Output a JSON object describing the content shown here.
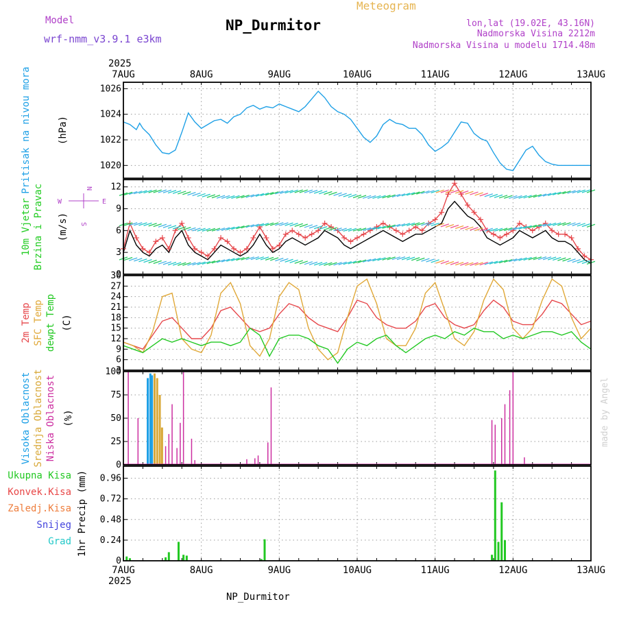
{
  "header": {
    "model_label": "Model",
    "model_name": "wrf-nmm_v3.9.1 e3km",
    "title": "NP_Durmitor",
    "subtitle": "Meteogram",
    "lonlat": "lon,lat (19.02E, 43.16N)",
    "elevation": "Nadmorska Visina 2212m",
    "model_elevation": "Nadmorska Visina u modelu 1714.48m",
    "footer_station": "NP_Durmitor",
    "credit": "made by Angel"
  },
  "colors": {
    "pressure": "#1ea0e6",
    "wind_label": "#22cc22",
    "temp2m": "#e6464a",
    "sfc": "#e0a838",
    "dewpt": "#22c822",
    "high_cloud": "#1ea0e6",
    "mid_cloud": "#d8a838",
    "low_cloud": "#cc2ea0",
    "precip_total": "#22c822",
    "precip_conv": "#e84646",
    "precip_frozen": "#ee7d3c",
    "precip_snow": "#4444dd",
    "precip_graup": "#22c8c8",
    "vane_label": "#b040c8",
    "year": "#000000"
  },
  "chart_data": {
    "type": "meteogram",
    "year": "2025",
    "x_ticks": [
      "7AUG",
      "8AUG",
      "9AUG",
      "10AUG",
      "11AUG",
      "12AUG",
      "13AUG"
    ],
    "x_range_hours": [
      0,
      144
    ],
    "panels": [
      {
        "id": "pressure",
        "type": "line",
        "labels": [
          "Pritisak na nivou mora"
        ],
        "unit": "(hPa)",
        "ylim": [
          1019,
          1026.5
        ],
        "y_ticks": [
          1020,
          1022,
          1024,
          1026
        ],
        "series": [
          {
            "name": "Pritisak na nivou mora",
            "x": [
              0,
              2,
              4,
              5,
              6,
              8,
              10,
              12,
              14,
              16,
              18,
              20,
              22,
              24,
              26,
              28,
              30,
              32,
              34,
              36,
              38,
              40,
              42,
              44,
              46,
              48,
              50,
              52,
              54,
              56,
              58,
              60,
              62,
              64,
              66,
              68,
              70,
              72,
              74,
              76,
              78,
              80,
              82,
              84,
              86,
              88,
              90,
              92,
              94,
              96,
              98,
              100,
              102,
              104,
              106,
              108,
              110,
              112,
              114,
              116,
              118,
              120,
              122,
              124,
              126,
              128,
              130,
              132,
              134,
              136,
              138,
              140,
              142,
              144
            ],
            "values": [
              1023.4,
              1023.2,
              1022.8,
              1023.3,
              1022.9,
              1022.4,
              1021.6,
              1021.0,
              1020.9,
              1021.2,
              1022.6,
              1024.1,
              1023.4,
              1022.9,
              1023.2,
              1023.5,
              1023.6,
              1023.3,
              1023.8,
              1024.0,
              1024.5,
              1024.7,
              1024.4,
              1024.6,
              1024.5,
              1024.8,
              1024.6,
              1024.4,
              1024.2,
              1024.6,
              1025.2,
              1025.8,
              1025.3,
              1024.6,
              1024.2,
              1024.0,
              1023.6,
              1022.9,
              1022.2,
              1021.8,
              1022.3,
              1023.2,
              1023.6,
              1023.3,
              1023.2,
              1022.9,
              1022.9,
              1022.4,
              1021.6,
              1021.1,
              1021.4,
              1021.8,
              1022.6,
              1023.4,
              1023.3,
              1022.5,
              1022.1,
              1021.9,
              1021.0,
              1020.2,
              1019.7,
              1019.6,
              1020.4,
              1021.2,
              1021.5,
              1020.8,
              1020.3,
              1020.1,
              1020.0,
              1020.0,
              1020.0,
              1020.0,
              1020.0,
              1020.0
            ]
          }
        ]
      },
      {
        "id": "wind",
        "type": "line",
        "labels": [
          "10m Vjetar",
          "Brzina i Pravac"
        ],
        "unit": "(m/s)",
        "ylim": [
          0,
          13
        ],
        "y_ticks": [
          0,
          3,
          6,
          9,
          12
        ],
        "vane_labels": [
          "W",
          "N",
          "S",
          "E"
        ],
        "series": [
          {
            "name": "Brzina",
            "x": [
              0,
              2,
              4,
              6,
              8,
              10,
              12,
              14,
              16,
              18,
              20,
              22,
              24,
              26,
              28,
              30,
              32,
              34,
              36,
              38,
              40,
              42,
              44,
              46,
              48,
              50,
              52,
              54,
              56,
              58,
              60,
              62,
              64,
              66,
              68,
              70,
              72,
              74,
              76,
              78,
              80,
              82,
              84,
              86,
              88,
              90,
              92,
              94,
              96,
              98,
              100,
              102,
              104,
              106,
              108,
              110,
              112,
              114,
              116,
              118,
              120,
              122,
              124,
              126,
              128,
              130,
              132,
              134,
              136,
              138,
              140,
              142,
              144
            ],
            "values": [
              3.0,
              6.0,
              4.0,
              3.0,
              2.5,
              3.5,
              4.0,
              3.0,
              5.0,
              6.0,
              4.0,
              3.0,
              2.5,
              2.0,
              3.0,
              4.0,
              3.5,
              3.0,
              2.5,
              3.0,
              4.0,
              5.5,
              4.0,
              3.0,
              3.5,
              4.5,
              5.0,
              4.5,
              4.0,
              4.5,
              5.0,
              6.0,
              5.5,
              5.0,
              4.0,
              3.5,
              4.0,
              4.5,
              5.0,
              5.5,
              6.0,
              5.5,
              5.0,
              4.5,
              5.0,
              5.5,
              5.5,
              6.0,
              6.5,
              7.0,
              9.0,
              10.0,
              9.0,
              8.0,
              7.5,
              6.5,
              5.0,
              4.5,
              4.0,
              4.5,
              5.0,
              6.0,
              5.5,
              5.0,
              5.5,
              6.0,
              5.0,
              4.5,
              4.5,
              4.0,
              3.0,
              2.0,
              1.5
            ]
          },
          {
            "name": "Udari",
            "x": [
              0,
              2,
              4,
              6,
              8,
              10,
              12,
              14,
              16,
              18,
              20,
              22,
              24,
              26,
              28,
              30,
              32,
              34,
              36,
              38,
              40,
              42,
              44,
              46,
              48,
              50,
              52,
              54,
              56,
              58,
              60,
              62,
              64,
              66,
              68,
              70,
              72,
              74,
              76,
              78,
              80,
              82,
              84,
              86,
              88,
              90,
              92,
              94,
              96,
              98,
              100,
              102,
              104,
              106,
              108,
              110,
              112,
              114,
              116,
              118,
              120,
              122,
              124,
              126,
              128,
              130,
              132,
              134,
              136,
              138,
              140,
              142,
              144
            ],
            "values": [
              3.5,
              7.0,
              5.0,
              3.5,
              3.0,
              4.5,
              5.0,
              3.5,
              6.0,
              7.0,
              5.0,
              3.5,
              3.0,
              2.5,
              3.5,
              5.0,
              4.5,
              3.5,
              3.0,
              3.5,
              5.0,
              6.5,
              5.0,
              3.5,
              4.0,
              5.5,
              6.0,
              5.5,
              5.0,
              5.5,
              6.0,
              7.0,
              6.5,
              6.0,
              5.0,
              4.5,
              5.0,
              5.5,
              6.0,
              6.5,
              7.0,
              6.5,
              6.0,
              5.5,
              6.0,
              6.5,
              6.0,
              7.0,
              7.5,
              8.5,
              11.0,
              12.5,
              11.0,
              9.5,
              8.5,
              7.5,
              6.0,
              5.5,
              5.0,
              5.5,
              6.0,
              7.0,
              6.5,
              6.0,
              6.5,
              7.0,
              6.0,
              5.5,
              5.5,
              5.0,
              3.5,
              2.5,
              2.0
            ]
          }
        ]
      },
      {
        "id": "temperature",
        "type": "line",
        "labels": [
          "2m Temp",
          "SFC Temp",
          "dewpt Temp"
        ],
        "unit": "(C)",
        "ylim": [
          3,
          30
        ],
        "y_ticks": [
          3,
          6,
          9,
          12,
          15,
          18,
          21,
          24,
          27,
          30
        ],
        "series": [
          {
            "name": "2m Temp",
            "x": [
              0,
              3,
              6,
              9,
              12,
              15,
              18,
              21,
              24,
              27,
              30,
              33,
              36,
              39,
              42,
              45,
              48,
              51,
              54,
              57,
              60,
              63,
              66,
              69,
              72,
              75,
              78,
              81,
              84,
              87,
              90,
              93,
              96,
              99,
              102,
              105,
              108,
              111,
              114,
              117,
              120,
              123,
              126,
              129,
              132,
              135,
              138,
              141,
              144
            ],
            "values": [
              11,
              10,
              9,
              13,
              17,
              18,
              15,
              12,
              12,
              15,
              20,
              21,
              18,
              15,
              14,
              15,
              19,
              22,
              21,
              18,
              16,
              15,
              14,
              18,
              23,
              22,
              18,
              16,
              15,
              15,
              17,
              21,
              22,
              18,
              16,
              15,
              16,
              20,
              23,
              21,
              17,
              16,
              16,
              19,
              23,
              22,
              19,
              16,
              17
            ]
          },
          {
            "name": "SFC Temp",
            "x": [
              0,
              3,
              6,
              9,
              12,
              15,
              18,
              21,
              24,
              27,
              30,
              33,
              36,
              39,
              42,
              45,
              48,
              51,
              54,
              57,
              60,
              63,
              66,
              69,
              72,
              75,
              78,
              81,
              84,
              87,
              90,
              93,
              96,
              99,
              102,
              105,
              108,
              111,
              114,
              117,
              120,
              123,
              126,
              129,
              132,
              135,
              138,
              141,
              144
            ],
            "values": [
              11,
              10,
              8,
              14,
              24,
              25,
              12,
              9,
              8,
              13,
              25,
              28,
              22,
              10,
              7,
              12,
              24,
              28,
              26,
              15,
              9,
              6,
              8,
              18,
              27,
              29,
              22,
              12,
              10,
              10,
              15,
              25,
              28,
              20,
              12,
              10,
              14,
              23,
              29,
              26,
              15,
              12,
              15,
              23,
              29,
              27,
              18,
              12,
              15
            ]
          },
          {
            "name": "dewpt Temp",
            "x": [
              0,
              3,
              6,
              9,
              12,
              15,
              18,
              21,
              24,
              27,
              30,
              33,
              36,
              39,
              42,
              45,
              48,
              51,
              54,
              57,
              60,
              63,
              66,
              69,
              72,
              75,
              78,
              81,
              84,
              87,
              90,
              93,
              96,
              99,
              102,
              105,
              108,
              111,
              114,
              117,
              120,
              123,
              126,
              129,
              132,
              135,
              138,
              141,
              144
            ],
            "values": [
              10,
              9,
              8,
              10,
              12,
              11,
              12,
              11,
              10,
              11,
              11,
              10,
              11,
              15,
              13,
              7,
              12,
              13,
              13,
              12,
              10,
              9,
              5,
              9,
              11,
              10,
              12,
              13,
              10,
              8,
              10,
              12,
              13,
              12,
              14,
              13,
              15,
              14,
              14,
              12,
              13,
              12,
              13,
              14,
              14,
              13,
              14,
              11,
              9
            ]
          }
        ]
      },
      {
        "id": "clouds",
        "type": "bar",
        "labels": [
          "Visoka Oblacnost",
          "Srednja Oblacnost",
          "Niska Oblacnost"
        ],
        "unit": "(%)",
        "ylim": [
          0,
          100
        ],
        "y_ticks": [
          0,
          25,
          50,
          75,
          100
        ],
        "series": [
          {
            "name": "Visoka Oblacnost",
            "x": [
              7.5,
              8.3,
              8.8
            ],
            "values": [
              93,
              98,
              96
            ]
          },
          {
            "name": "Srednja Oblacnost",
            "x": [
              9.6,
              10.4,
              11.2,
              11.9
            ],
            "values": [
              98,
              93,
              75,
              40
            ]
          },
          {
            "name": "Niska Oblacnost",
            "x": [
              1.5,
              4.5,
              13.0,
              14.0,
              15.0,
              16.5,
              17.5,
              18.5,
              21.0,
              22.0,
              38.0,
              40.5,
              41.5,
              44.5,
              45.5,
              113.5,
              114.5,
              116.5,
              117.5,
              119.0,
              120.0,
              123.5
            ],
            "values": [
              100,
              50,
              20,
              33,
              65,
              18,
              45,
              100,
              28,
              5,
              6,
              7,
              10,
              24,
              83,
              48,
              43,
              50,
              65,
              80,
              100,
              8
            ]
          }
        ]
      },
      {
        "id": "precip",
        "type": "bar",
        "labels": [
          "Ukupna Kisa",
          "Konvek.Kisa",
          "Zaledj.Kisa",
          "Snijeg",
          "Grad"
        ],
        "unit": "1hr Precip (mm)",
        "ylim": [
          0,
          1.1
        ],
        "y_ticks": [
          0,
          0.24,
          0.48,
          0.72,
          0.96
        ],
        "series": [
          {
            "name": "Ukupna Kisa",
            "x": [
              1.0,
              2.0,
              13.0,
              14.0,
              17.0,
              18.5,
              19.5,
              42.5,
              43.5,
              113.5,
              114.5,
              115.5,
              116.5,
              117.5
            ],
            "values": [
              0.05,
              0.03,
              0.04,
              0.1,
              0.22,
              0.07,
              0.06,
              0.02,
              0.25,
              0.07,
              1.05,
              0.22,
              0.68,
              0.24
            ]
          }
        ]
      }
    ]
  }
}
